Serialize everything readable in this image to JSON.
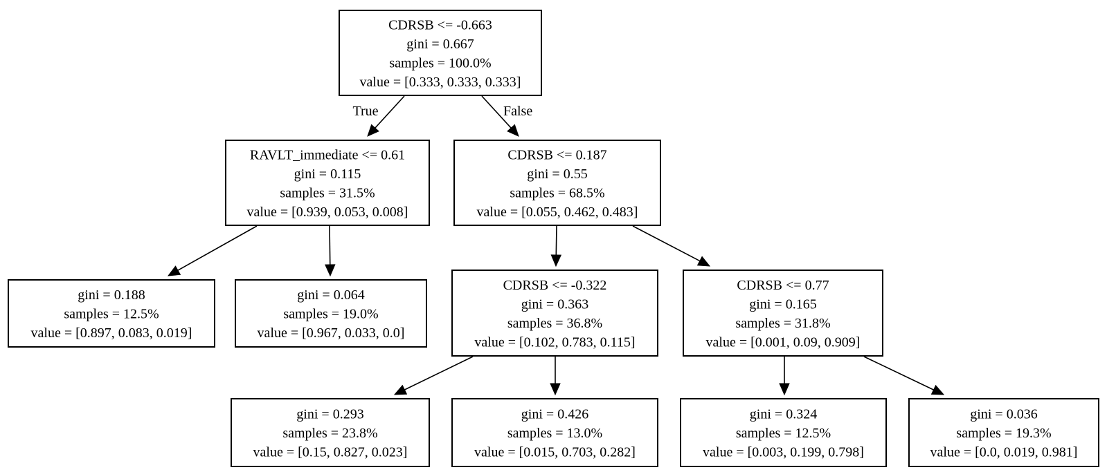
{
  "nodes": [
    {
      "id": "n0",
      "lines": [
        "CDRSB <= -0.663",
        "gini = 0.667",
        "samples = 100.0%",
        "value = [0.333, 0.333, 0.333]"
      ]
    },
    {
      "id": "n1",
      "lines": [
        "RAVLT_immediate <= 0.61",
        "gini = 0.115",
        "samples = 31.5%",
        "value = [0.939, 0.053, 0.008]"
      ]
    },
    {
      "id": "n2",
      "lines": [
        "CDRSB <= 0.187",
        "gini = 0.55",
        "samples = 68.5%",
        "value = [0.055, 0.462, 0.483]"
      ]
    },
    {
      "id": "n3",
      "lines": [
        "gini = 0.188",
        "samples = 12.5%",
        "value = [0.897, 0.083, 0.019]"
      ]
    },
    {
      "id": "n4",
      "lines": [
        "gini = 0.064",
        "samples = 19.0%",
        "value = [0.967, 0.033, 0.0]"
      ]
    },
    {
      "id": "n5",
      "lines": [
        "CDRSB <= -0.322",
        "gini = 0.363",
        "samples = 36.8%",
        "value = [0.102, 0.783, 0.115]"
      ]
    },
    {
      "id": "n6",
      "lines": [
        "CDRSB <= 0.77",
        "gini = 0.165",
        "samples = 31.8%",
        "value = [0.001, 0.09, 0.909]"
      ]
    },
    {
      "id": "n7",
      "lines": [
        "gini = 0.293",
        "samples = 23.8%",
        "value = [0.15, 0.827, 0.023]"
      ]
    },
    {
      "id": "n8",
      "lines": [
        "gini = 0.426",
        "samples = 13.0%",
        "value = [0.015, 0.703, 0.282]"
      ]
    },
    {
      "id": "n9",
      "lines": [
        "gini = 0.324",
        "samples = 12.5%",
        "value = [0.003, 0.199, 0.798]"
      ]
    },
    {
      "id": "n10",
      "lines": [
        "gini = 0.036",
        "samples = 19.3%",
        "value = [0.0, 0.019, 0.981]"
      ]
    }
  ],
  "edges": [
    {
      "from": "n0",
      "to": "n1",
      "label": "True"
    },
    {
      "from": "n0",
      "to": "n2",
      "label": "False"
    },
    {
      "from": "n1",
      "to": "n3",
      "label": ""
    },
    {
      "from": "n1",
      "to": "n4",
      "label": ""
    },
    {
      "from": "n2",
      "to": "n5",
      "label": ""
    },
    {
      "from": "n2",
      "to": "n6",
      "label": ""
    },
    {
      "from": "n5",
      "to": "n7",
      "label": ""
    },
    {
      "from": "n5",
      "to": "n8",
      "label": ""
    },
    {
      "from": "n6",
      "to": "n9",
      "label": ""
    },
    {
      "from": "n6",
      "to": "n10",
      "label": ""
    }
  ]
}
